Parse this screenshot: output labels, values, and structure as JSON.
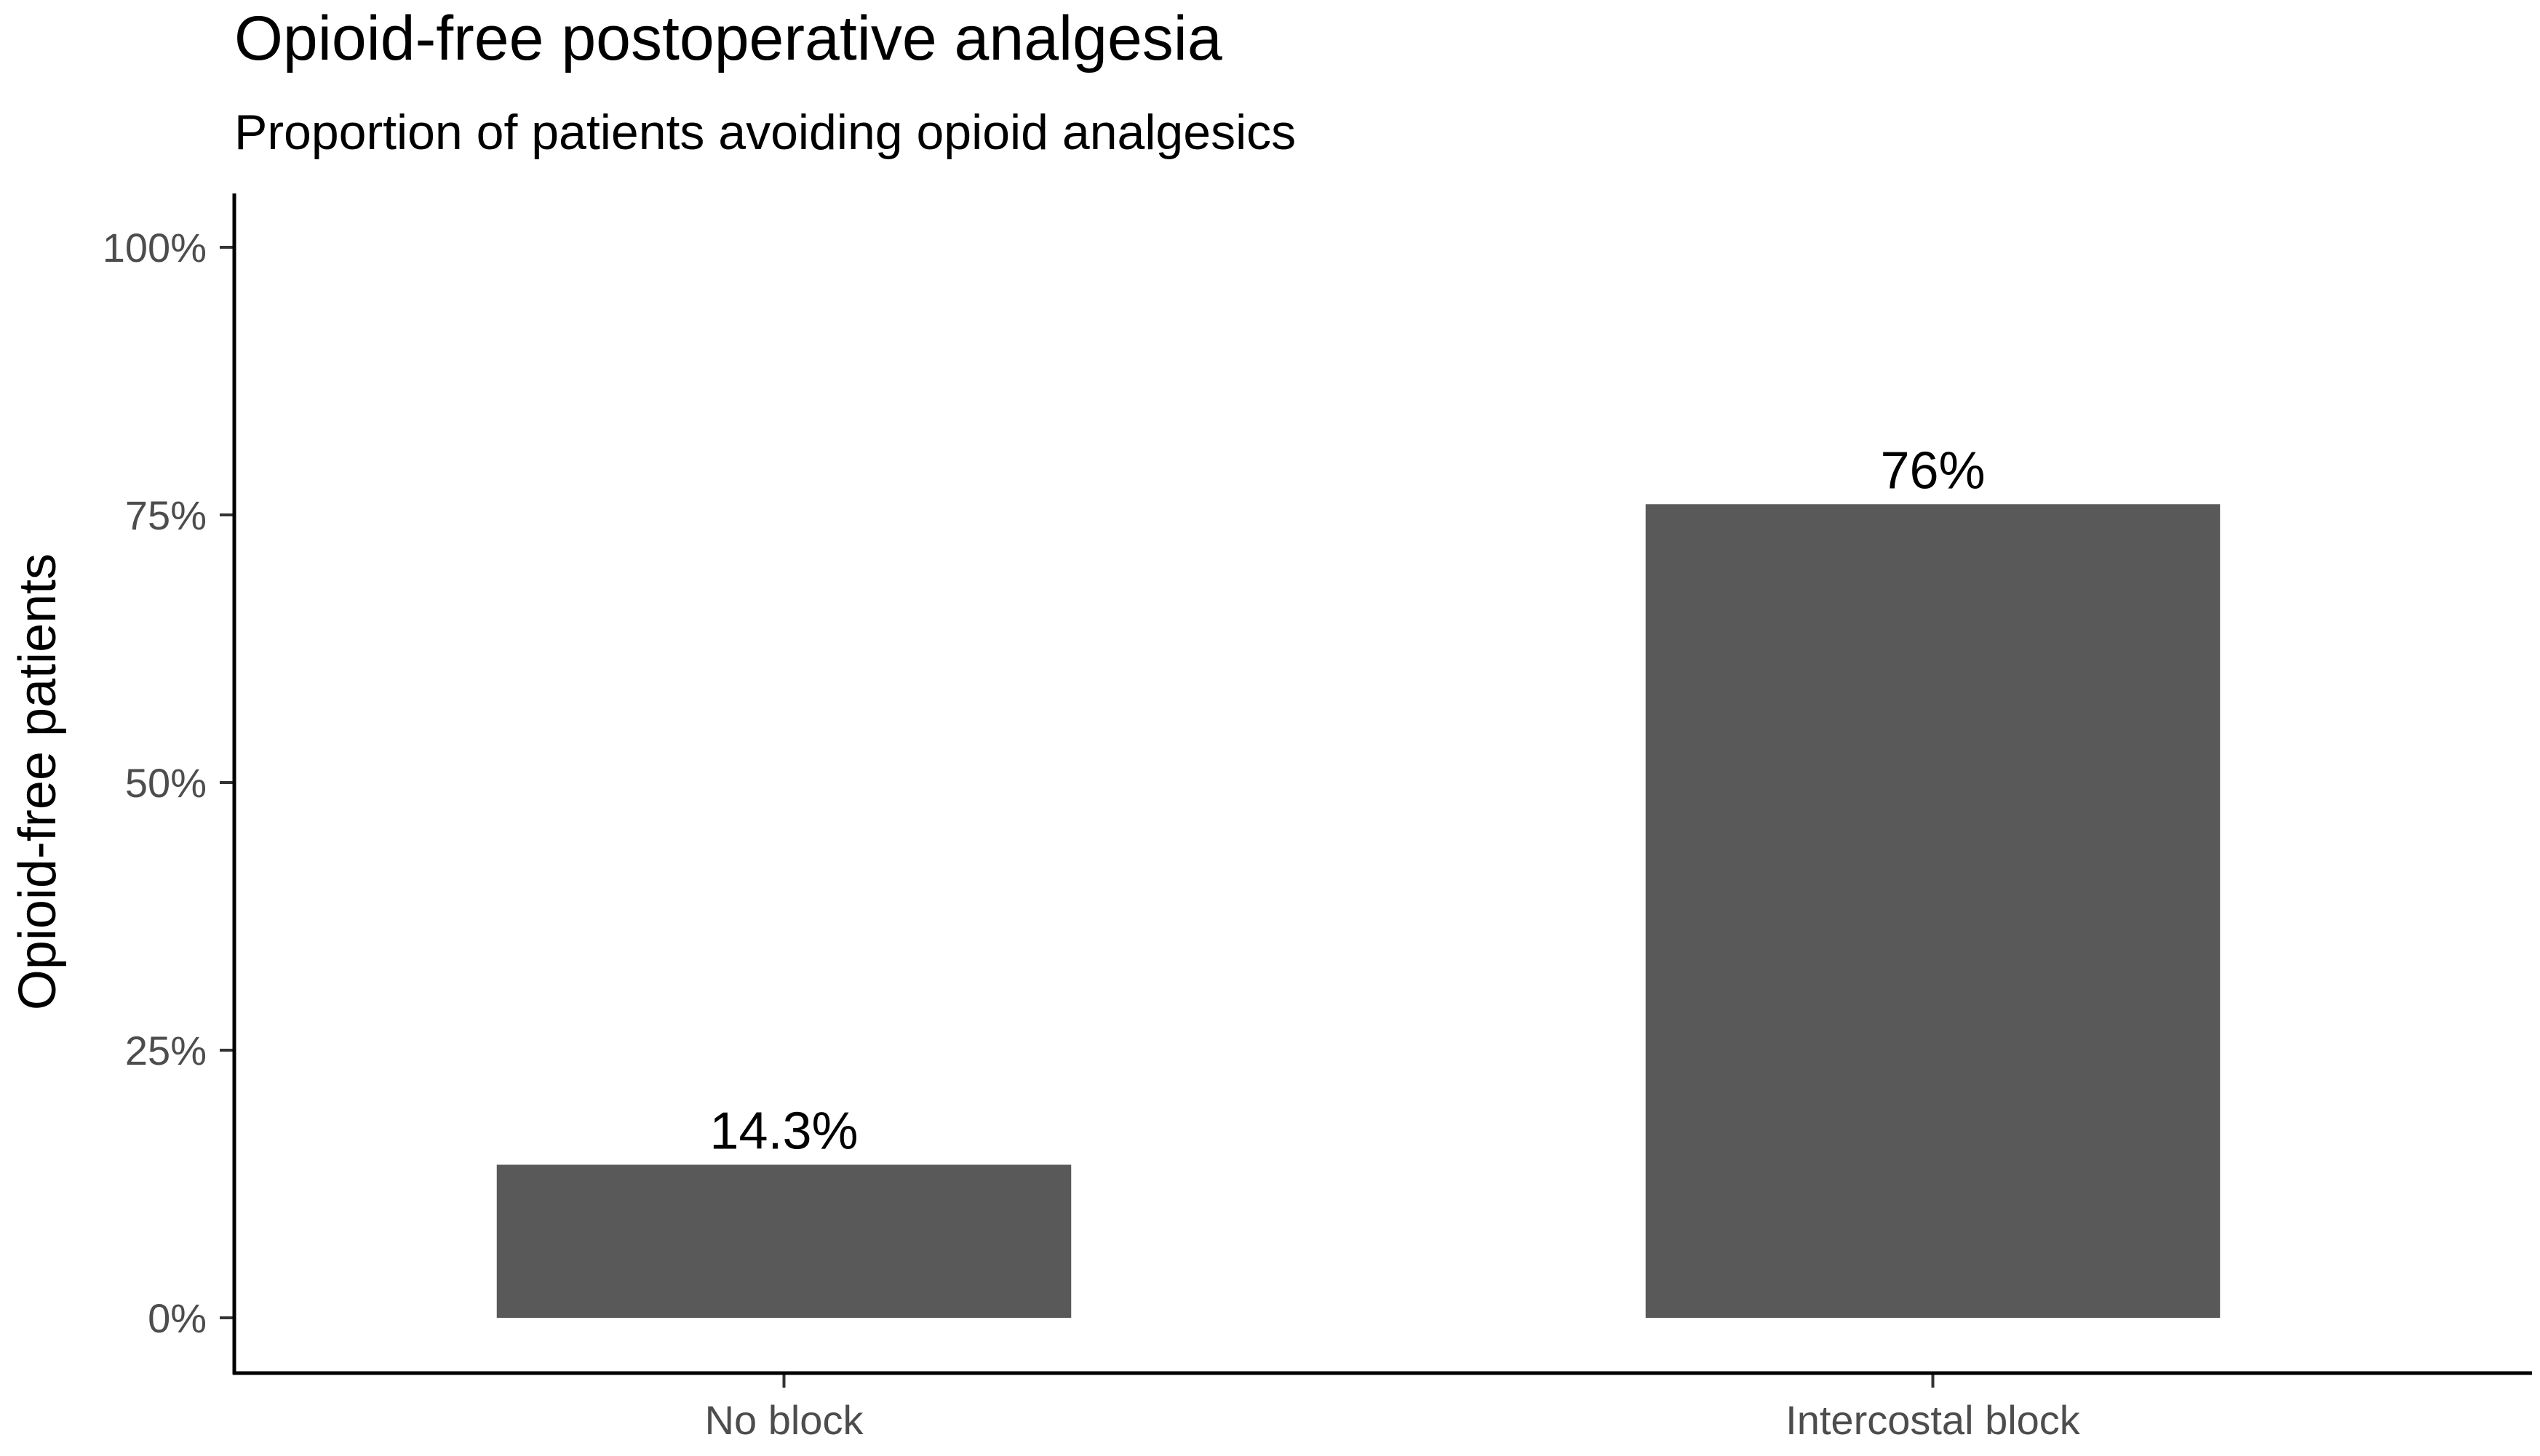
{
  "chart_data": {
    "type": "bar",
    "title": "Opioid-free postoperative analgesia",
    "subtitle": "Proportion of patients avoiding opioid analgesics",
    "xlabel": "",
    "ylabel": "Opioid-free patients",
    "categories": [
      "No block",
      "Intercostal block"
    ],
    "values": [
      14.3,
      76
    ],
    "data_labels": [
      "14.3%",
      "76%"
    ],
    "ylim": [
      0,
      100
    ],
    "y_ticks": [
      0,
      25,
      50,
      75,
      100
    ],
    "y_tick_labels": [
      "0%",
      "25%",
      "50%",
      "75%",
      "100%"
    ],
    "bar_color": "#595959",
    "grid": false,
    "legend": "none"
  }
}
